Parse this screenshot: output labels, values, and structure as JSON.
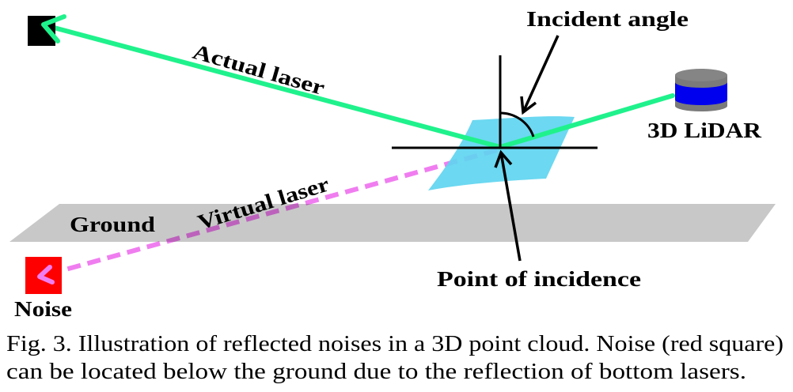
{
  "figure": {
    "labels": {
      "incident_angle": "Incident angle",
      "actual_laser": "Actual laser",
      "lidar": "3D LiDAR",
      "ground": "Ground",
      "virtual_laser": "Virtual laser",
      "noise": "Noise",
      "point_of_incidence": "Point of incidence"
    },
    "icons": {
      "lidar": "lidar-sensor-icon",
      "target": "target-square-icon",
      "noise": "noise-square-icon"
    },
    "colors": {
      "actual_laser": "#1ff28c",
      "virtual_laser": "#f07df0",
      "reflective_surface": "#5fd5f0",
      "ground": "#c8c8c8",
      "lidar_body": "#0000ee",
      "lidar_cap": "#858585",
      "lidar_base": "#7a7a7a",
      "noise_marker": "#ff0000",
      "target_marker": "#000000",
      "lines": "#000000"
    }
  },
  "caption": {
    "line1": "Fig. 3. Illustration of reflected noises in a 3D point cloud. Noise (red square)",
    "line2": "can be located below the ground due to the reflection of bottom lasers."
  }
}
